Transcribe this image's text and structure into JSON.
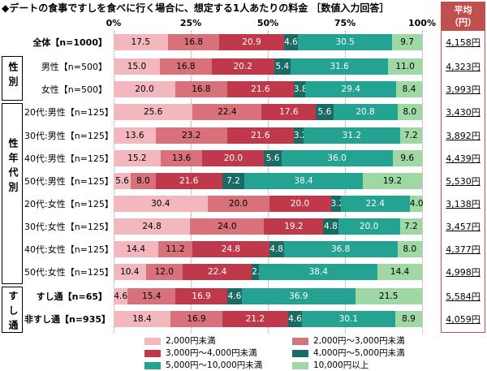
{
  "title": "◆デートの食事ですしを食べに行く場合に、想定する1人あたりの料金 ［数値入力回答］",
  "avg_header": [
    "平均",
    "（円）"
  ],
  "groups": {
    "seibetsu": "性別",
    "seinendai": "性年代別",
    "sushitsu": "すし通"
  },
  "legend": [
    "2,000円未満",
    "2,000円～3,000円未満",
    "3,000円～4,000円未満",
    "4,000円～5,000円未満",
    "5,000円～10,000円未満",
    "10,000円以上"
  ],
  "colors": [
    "#f2b8bd",
    "#d9717a",
    "#c0394a",
    "#1a6b63",
    "#24a393",
    "#9fd8a5"
  ],
  "label_colors": [
    "#000000",
    "#000000",
    "#ffffff",
    "#ffffff",
    "#ffffff",
    "#000000"
  ],
  "chart_data": {
    "type": "bar",
    "orientation": "horizontal-stacked-100",
    "title": "◆デートの食事ですしを食べに行く場合に、想定する1人あたりの料金 ［数値入力回答］",
    "xlim": [
      0,
      100
    ],
    "xticks": [
      "0%",
      "25%",
      "50%",
      "75%",
      "100%"
    ],
    "series_names": [
      "2,000円未満",
      "2,000円～3,000円未満",
      "3,000円～4,000円未満",
      "4,000円～5,000円未満",
      "5,000円～10,000円未満",
      "10,000円以上"
    ],
    "rows": [
      {
        "label": "全体【n=1000】",
        "values": [
          17.5,
          16.8,
          20.9,
          4.6,
          30.5,
          9.7
        ],
        "avg": "4,158円"
      },
      {
        "label": "男性【n=500】",
        "values": [
          15.0,
          16.8,
          20.2,
          5.4,
          31.6,
          11.0
        ],
        "avg": "4,323円"
      },
      {
        "label": "女性【n=500】",
        "values": [
          20.0,
          16.8,
          21.6,
          3.8,
          29.4,
          8.4
        ],
        "avg": "3,993円"
      },
      {
        "label": "20代:男性【n=125】",
        "values": [
          25.6,
          22.4,
          17.6,
          5.6,
          20.8,
          8.0
        ],
        "avg": "3,430円"
      },
      {
        "label": "30代:男性【n=125】",
        "values": [
          13.6,
          23.2,
          21.6,
          3.2,
          31.2,
          7.2
        ],
        "avg": "3,892円"
      },
      {
        "label": "40代:男性【n=125】",
        "values": [
          15.2,
          13.6,
          20.0,
          5.6,
          36.0,
          9.6
        ],
        "avg": "4,439円"
      },
      {
        "label": "50代:男性【n=125】",
        "values": [
          5.6,
          8.0,
          21.6,
          7.2,
          38.4,
          19.2
        ],
        "avg": "5,530円"
      },
      {
        "label": "20代:女性【n=125】",
        "values": [
          30.4,
          20.0,
          20.0,
          3.2,
          22.4,
          4.0
        ],
        "avg": "3,138円"
      },
      {
        "label": "30代:女性【n=125】",
        "values": [
          24.8,
          24.0,
          19.2,
          4.8,
          20.0,
          7.2
        ],
        "avg": "3,457円"
      },
      {
        "label": "40代:女性【n=125】",
        "values": [
          14.4,
          11.2,
          24.8,
          4.8,
          36.8,
          8.0
        ],
        "avg": "4,377円"
      },
      {
        "label": "50代:女性【n=125】",
        "values": [
          10.4,
          12.0,
          22.4,
          2.4,
          38.4,
          14.4
        ],
        "avg": "4,998円"
      },
      {
        "label": "すし通【n=65】",
        "values": [
          4.6,
          15.4,
          16.9,
          4.6,
          36.9,
          21.5
        ],
        "avg": "5,584円"
      },
      {
        "label": "非すし通【n=935】",
        "values": [
          18.4,
          16.9,
          21.2,
          4.6,
          30.1,
          8.9
        ],
        "avg": "4,059円"
      }
    ]
  }
}
